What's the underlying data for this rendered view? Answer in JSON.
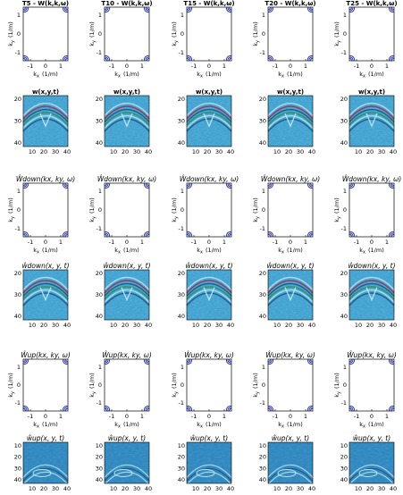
{
  "colors": {
    "axis": "#000000",
    "spectrum_blue": "#1b2a9c",
    "wave_bg": "#3a9fd0",
    "wave_light": "#bfe8f5",
    "wave_dark": "#1a4f7a",
    "wave_red": "#b0203a",
    "wave_green": "#2f8a4a"
  },
  "columns": [
    {
      "fk_title": "T5 - W(k,k,ω)",
      "wave_title": "w(x,y,t)",
      "fk_sub": "x y"
    },
    {
      "fk_title": "T10 - W(k,k,ω)",
      "wave_title": "w(x,y,t)",
      "fk_sub": "x y"
    },
    {
      "fk_title": "T15 - W(k,k,ω)",
      "wave_title": "w(x,y,t)",
      "fk_sub": "x y"
    },
    {
      "fk_title": "T20 - W(k,k,ω)",
      "wave_title": "w(x,y,t)",
      "fk_sub": "x y"
    },
    {
      "fk_title": "T25 - W(k,k,ω)",
      "wave_title": "w(x,y,t)",
      "fk_sub": "x y"
    }
  ],
  "rows": {
    "down_fk_title": "Ŵdown(kx, ky, ω)",
    "down_wave_title": "ŵdown(x, y, t)",
    "up_fk_title": "Ŵup(kx, ky, ω)",
    "up_wave_title": "ŵup(x, y, t)"
  },
  "fk_axes": {
    "xlabel": "k",
    "xlabel_sub": "x",
    "xunit": "(1/m)",
    "ylabel": "k",
    "ylabel_sub": "y",
    "yunit": "(1/m)",
    "xticks": [
      "-1",
      "0",
      "1"
    ],
    "yticks": [
      "1",
      "0",
      "-1"
    ]
  },
  "wave_axes": {
    "xticks": [
      "10",
      "20",
      "30",
      "40"
    ],
    "yticks": [
      "20",
      "30",
      "40"
    ],
    "yticks_top": [
      "10",
      "20",
      "30",
      "40"
    ]
  },
  "chart_data": {
    "type": "heatmap",
    "layout": "grid of 6 rows by 5 columns",
    "panels": {
      "fk_ranges": {
        "xlim": [
          -1.5,
          1.5
        ],
        "ylim": [
          -1.5,
          1.5
        ]
      },
      "wave_ranges": {
        "xlim": [
          0,
          40
        ],
        "ylim": [
          0,
          40
        ]
      }
    }
  }
}
